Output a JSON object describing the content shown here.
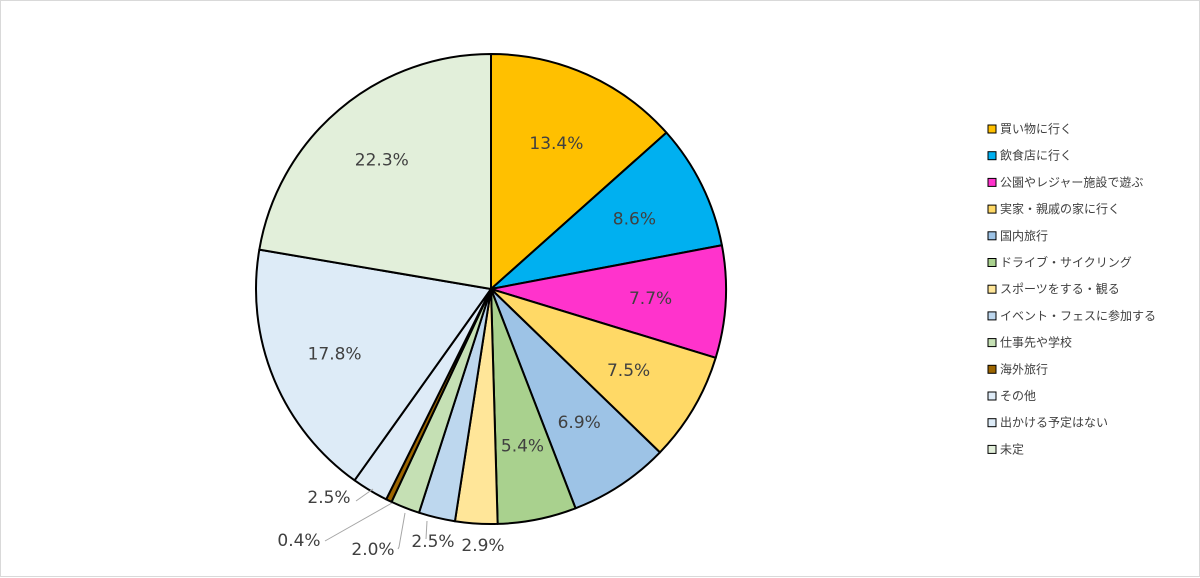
{
  "chart_data": {
    "type": "pie",
    "title": "",
    "series": [
      {
        "name": "買い物に行く",
        "value": 13.4,
        "label": "13.4%",
        "color": "#FFC000"
      },
      {
        "name": "飲食店に行く",
        "value": 8.6,
        "label": "8.6%",
        "color": "#00B0F0"
      },
      {
        "name": "公園やレジャー施設で遊ぶ",
        "value": 7.7,
        "label": "7.7%",
        "color": "#FF33CC"
      },
      {
        "name": "実家・親戚の家に行く",
        "value": 7.5,
        "label": "7.5%",
        "color": "#FFD966"
      },
      {
        "name": "国内旅行",
        "value": 6.9,
        "label": "6.9%",
        "color": "#9DC3E6"
      },
      {
        "name": "ドライブ・サイクリング",
        "value": 5.4,
        "label": "5.4%",
        "color": "#A9D18E"
      },
      {
        "name": "スポーツをする・観る",
        "value": 2.9,
        "label": "2.9%",
        "color": "#FFE699"
      },
      {
        "name": "イベント・フェスに参加する",
        "value": 2.5,
        "label": "2.5%",
        "color": "#BDD7EE"
      },
      {
        "name": "仕事先や学校",
        "value": 2.0,
        "label": "2.0%",
        "color": "#C5E0B4"
      },
      {
        "name": "海外旅行",
        "value": 0.4,
        "label": "0.4%",
        "color": "#9C6500"
      },
      {
        "name": "その他",
        "value": 2.5,
        "label": "2.5%",
        "color": "#DEEBF7"
      },
      {
        "name": "出かける予定はない",
        "value": 17.8,
        "label": "17.8%",
        "color": "#DDEBF7"
      },
      {
        "name": "未定",
        "value": 22.3,
        "label": "22.3%",
        "color": "#E2EFDA"
      }
    ],
    "legend_position": "right",
    "grid": false
  }
}
